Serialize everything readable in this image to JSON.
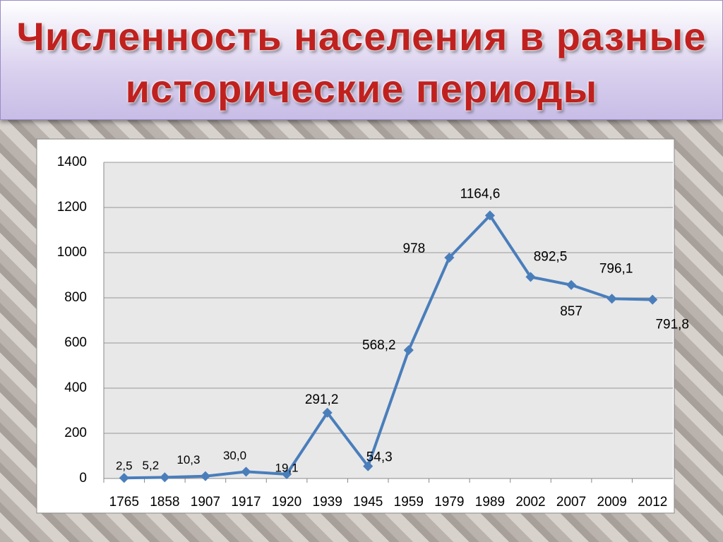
{
  "chart_data": {
    "type": "line",
    "title": [
      "Численность населения в разные",
      "исторические  периоды"
    ],
    "categories": [
      "1765",
      "1858",
      "1907",
      "1917",
      "1920",
      "1939",
      "1945",
      "1959",
      "1979",
      "1989",
      "2002",
      "2007",
      "2009",
      "2012"
    ],
    "values": [
      2.5,
      5.2,
      10.3,
      30.0,
      19.1,
      291.2,
      54.3,
      568.2,
      978,
      1164.6,
      892.5,
      857,
      796.1,
      791.8
    ],
    "value_labels": [
      "2,5",
      "5,2",
      "10,3",
      "30,0",
      "19,1",
      "291,2",
      "54,3",
      "568,2",
      "978",
      "1164,6",
      "892,5",
      "857",
      "796,1",
      "791,8"
    ],
    "color": "#4a7ebb",
    "ylim": [
      0,
      1400
    ],
    "yticks": [
      0,
      200,
      400,
      600,
      800,
      1000,
      1200,
      1400
    ],
    "grid": true
  }
}
